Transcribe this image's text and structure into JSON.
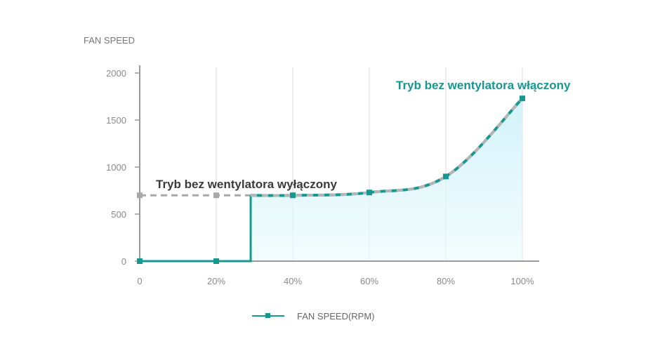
{
  "chart_data": {
    "type": "line",
    "ylabel": "FAN SPEED",
    "ylim": [
      0,
      2000
    ],
    "yticks": [
      "0",
      "500",
      "1000",
      "1500",
      "2000"
    ],
    "xlim": [
      0,
      100
    ],
    "xticks": [
      "0",
      "20%",
      "40%",
      "60%",
      "80%",
      "100%"
    ],
    "grid": "vertical",
    "legend_position": "bottom-center",
    "series": [
      {
        "name": "FAN SPEED(RPM)",
        "color": "#16978f",
        "fill": "#d9f5fb",
        "points": [
          {
            "x": 0,
            "y": 0
          },
          {
            "x": 20,
            "y": 0
          },
          {
            "x": 29,
            "y": 0
          },
          {
            "x": 29,
            "y": 700
          },
          {
            "x": 40,
            "y": 700
          },
          {
            "x": 60,
            "y": 730
          },
          {
            "x": 80,
            "y": 900
          },
          {
            "x": 100,
            "y": 1730
          }
        ],
        "markers": [
          {
            "x": 0,
            "y": 0
          },
          {
            "x": 20,
            "y": 0
          },
          {
            "x": 40,
            "y": 700
          },
          {
            "x": 60,
            "y": 730
          },
          {
            "x": 80,
            "y": 900
          },
          {
            "x": 100,
            "y": 1730
          }
        ]
      }
    ],
    "reference_line": {
      "color": "#a8a8a8",
      "y": 700,
      "markers": [
        {
          "x": 0,
          "y": 700
        },
        {
          "x": 20,
          "y": 700
        }
      ]
    },
    "annotations": {
      "fanless_off": "Tryb bez wentylatora wyłączony",
      "fanless_on": "Tryb bez wentylatora włączony"
    }
  }
}
